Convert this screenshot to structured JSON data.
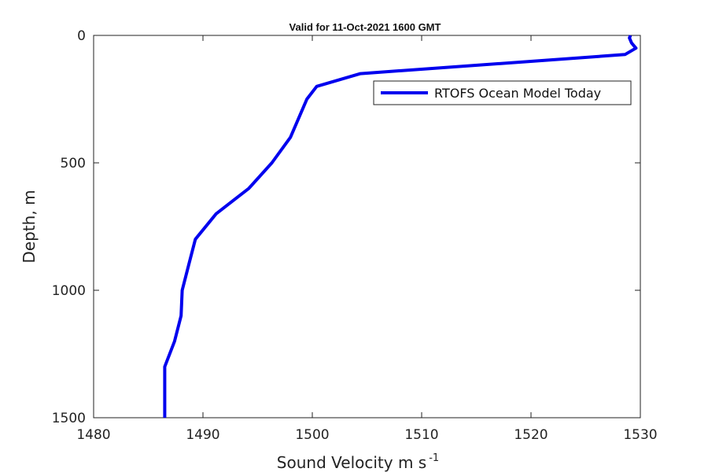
{
  "chart_data": {
    "type": "line",
    "title": "Valid for 11-Oct-2021 1600 GMT",
    "xlabel": "Sound Velocity m s",
    "xlabel_sup": "-1",
    "ylabel": "Depth, m",
    "xlim": [
      1480,
      1530
    ],
    "ylim": [
      0,
      1500
    ],
    "y_reversed": true,
    "xticks": [
      1480,
      1490,
      1500,
      1510,
      1520,
      1530
    ],
    "yticks": [
      0,
      500,
      1000,
      1500
    ],
    "grid": false,
    "legend_position": "top-right",
    "series": [
      {
        "name": "RTOFS Ocean Model Today",
        "color": "#0000ee",
        "x": [
          1529.1,
          1529.0,
          1529.2,
          1529.6,
          1528.6,
          1504.4,
          1500.4,
          1499.5,
          1498.0,
          1496.3,
          1494.2,
          1491.2,
          1489.3,
          1488.7,
          1488.1,
          1488.0,
          1487.4,
          1486.5,
          1486.5
        ],
        "y": [
          0,
          10,
          30,
          50,
          75,
          150,
          200,
          250,
          400,
          500,
          600,
          700,
          800,
          900,
          1000,
          1100,
          1200,
          1300,
          1500
        ]
      }
    ]
  }
}
